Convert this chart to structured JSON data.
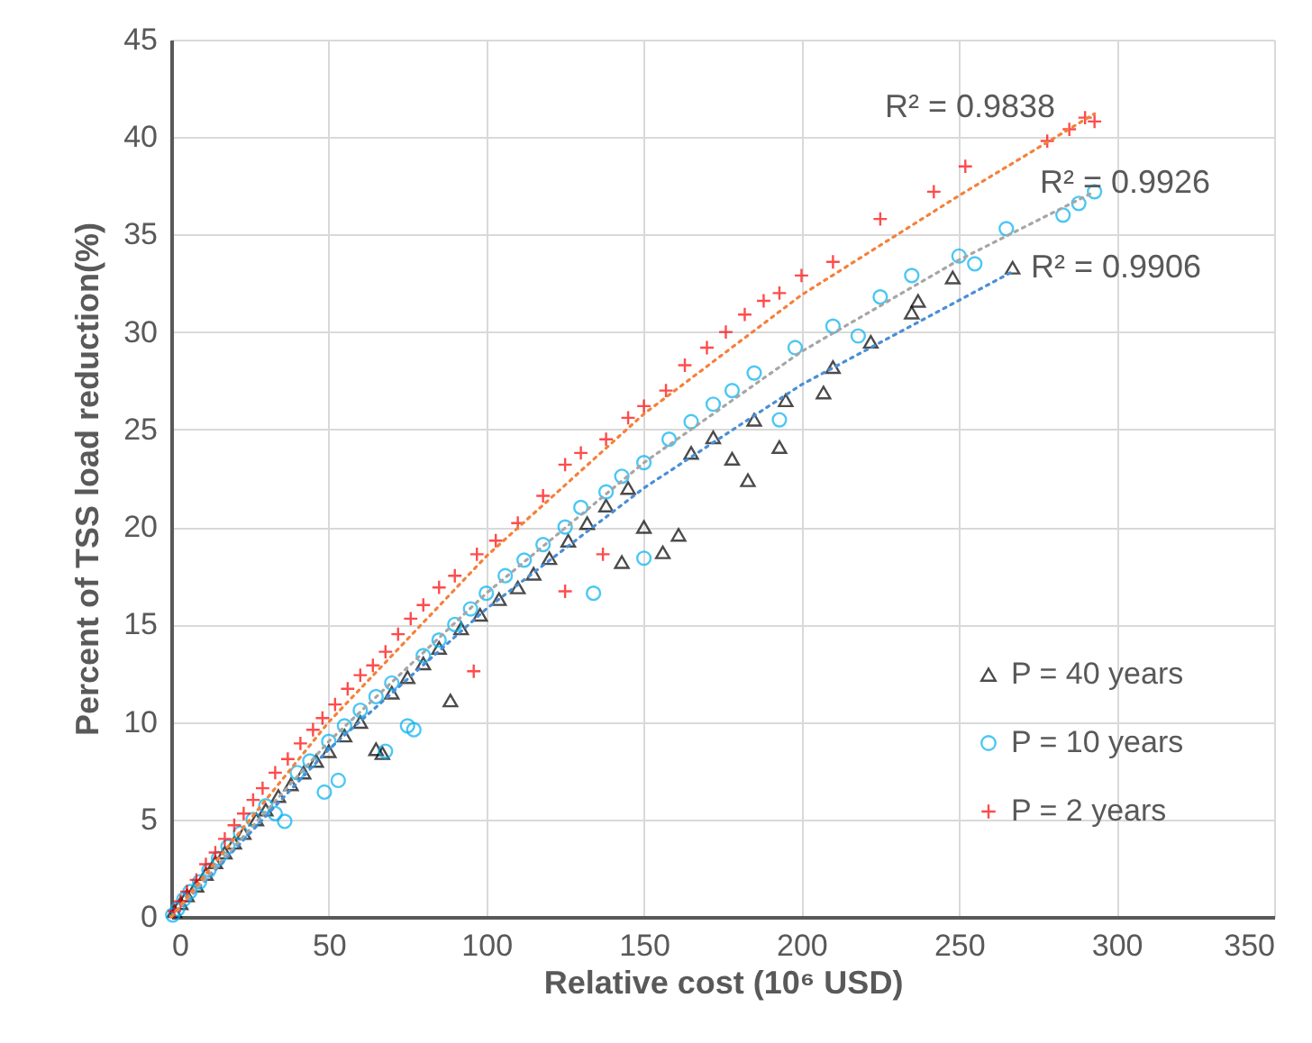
{
  "chart_data": {
    "type": "scatter",
    "xlabel": "Relative cost (10⁶ USD)",
    "ylabel": "Percent of TSS load reduction(%)",
    "xlim": [
      0,
      350
    ],
    "xticks": [
      0,
      50,
      100,
      150,
      200,
      250,
      300,
      350
    ],
    "ylim": [
      0,
      45
    ],
    "yticks": [
      0,
      5,
      10,
      15,
      20,
      25,
      30,
      35,
      40,
      45
    ],
    "grid": true,
    "legend": "bottom right",
    "series": [
      {
        "name": "P = 40 years",
        "marker": "triangle",
        "color": "#000000",
        "x": [
          1,
          3,
          5,
          8,
          11,
          14,
          17,
          20,
          23,
          27,
          30,
          34,
          38,
          42,
          46,
          50,
          55,
          60,
          65,
          67,
          70,
          75,
          80,
          85,
          88.6,
          92,
          98,
          104,
          110,
          115,
          120,
          126,
          132,
          138,
          143,
          145,
          150,
          156,
          161,
          165,
          172,
          178,
          183,
          185,
          193,
          195,
          207,
          210,
          222,
          235,
          237,
          248,
          267
        ],
        "values": [
          0.3,
          0.7,
          1.1,
          1.6,
          2.2,
          2.8,
          3.3,
          3.8,
          4.3,
          5.0,
          5.5,
          6.2,
          6.8,
          7.4,
          8.0,
          8.5,
          9.3,
          10.0,
          8.6,
          8.4,
          11.5,
          12.3,
          13.0,
          13.8,
          11.1,
          14.8,
          15.5,
          16.3,
          16.9,
          17.6,
          18.4,
          19.3,
          20.2,
          21.1,
          18.2,
          22.0,
          20.0,
          18.7,
          19.6,
          23.8,
          24.6,
          23.5,
          22.4,
          25.5,
          24.1,
          26.5,
          26.9,
          28.2,
          29.5,
          31.0,
          31.6,
          32.8,
          33.3
        ]
      },
      {
        "name": "P = 10 years",
        "marker": "circle",
        "color": "#00b0f0",
        "x": [
          0.5,
          2,
          4,
          6,
          9,
          12,
          15,
          18,
          22,
          26,
          30,
          33,
          36,
          40,
          44,
          48.6,
          50,
          53,
          55,
          60,
          65,
          68,
          70,
          75,
          77,
          80,
          85,
          90,
          95,
          100,
          106,
          112,
          118,
          125,
          130,
          134,
          138,
          143,
          150,
          150,
          158,
          165,
          172,
          178,
          185,
          193,
          198,
          210,
          218,
          225,
          235,
          250,
          255,
          265,
          283,
          288,
          293
        ],
        "values": [
          0.1,
          0.4,
          0.9,
          1.3,
          1.8,
          2.4,
          3.0,
          3.6,
          4.3,
          5.0,
          5.7,
          5.3,
          4.9,
          7.4,
          8.0,
          6.4,
          9.0,
          7.0,
          9.8,
          10.6,
          11.3,
          8.5,
          12.0,
          9.8,
          9.6,
          13.4,
          14.2,
          15.0,
          15.8,
          16.6,
          17.5,
          18.3,
          19.1,
          20.0,
          21.0,
          16.6,
          21.8,
          22.6,
          18.4,
          23.3,
          24.5,
          25.4,
          26.3,
          27.0,
          27.9,
          25.5,
          29.2,
          30.3,
          29.8,
          31.8,
          32.9,
          33.9,
          33.5,
          35.3,
          36.0,
          36.6,
          37.2
        ]
      },
      {
        "name": "P = 2 years",
        "marker": "cross",
        "color": "#ff0000",
        "x": [
          1,
          3,
          5,
          8,
          11,
          14,
          17,
          20,
          23,
          26,
          29,
          33,
          37,
          41,
          45,
          48,
          52,
          56,
          60,
          64,
          68,
          72,
          76,
          80,
          85,
          90,
          96,
          97,
          103,
          110,
          118,
          125,
          125,
          130,
          137,
          138,
          145,
          150,
          157,
          163,
          170,
          176,
          182,
          188,
          193,
          200,
          210,
          225,
          242,
          252,
          278,
          285,
          290,
          293
        ],
        "values": [
          0.3,
          0.8,
          1.3,
          1.9,
          2.7,
          3.3,
          4.0,
          4.7,
          5.3,
          6.0,
          6.6,
          7.4,
          8.1,
          8.9,
          9.6,
          10.2,
          10.9,
          11.7,
          12.4,
          12.9,
          13.6,
          14.5,
          15.3,
          16.0,
          16.9,
          17.5,
          12.6,
          18.6,
          19.3,
          20.2,
          21.6,
          16.7,
          23.2,
          23.8,
          18.6,
          24.5,
          25.6,
          26.2,
          27.0,
          28.3,
          29.2,
          30.0,
          30.9,
          31.6,
          32.0,
          32.9,
          33.6,
          35.8,
          37.2,
          38.5,
          39.8,
          40.4,
          41.0,
          40.8
        ]
      },
      {
        "type": "line",
        "marker": "none",
        "line_style": "dotted",
        "color": "#4a8fd6",
        "x": [
          0,
          50,
          100,
          150,
          200,
          267
        ],
        "values": [
          0,
          8.6,
          15.8,
          22.0,
          27.3,
          33.1
        ]
      },
      {
        "type": "line",
        "marker": "none",
        "line_style": "dotted",
        "color": "#a6a6a6",
        "x": [
          0,
          50,
          100,
          150,
          200,
          250,
          293
        ],
        "values": [
          0,
          9.0,
          16.6,
          23.3,
          29.0,
          33.7,
          37.2
        ]
      },
      {
        "type": "line",
        "marker": "none",
        "line_style": "dotted",
        "color": "#f4813b",
        "x": [
          0,
          50,
          100,
          150,
          200,
          250,
          293
        ],
        "values": [
          0,
          10.0,
          18.5,
          25.8,
          31.9,
          37.0,
          41.2
        ]
      }
    ],
    "annotations": [
      "R² = 0.9838",
      "R² = 0.9926",
      "R² = 0.9906"
    ]
  }
}
